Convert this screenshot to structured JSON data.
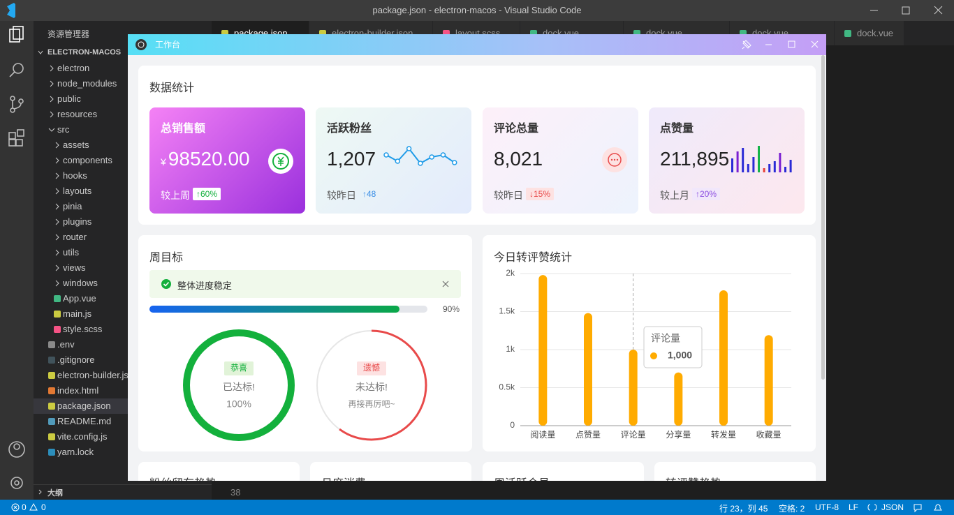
{
  "window": {
    "title": "package.json - electron-macos - Visual Studio Code"
  },
  "explorer": {
    "title": "资源管理器",
    "root": "ELECTRON-MACOS",
    "outline": "大纲",
    "items": [
      {
        "name": "electron",
        "depth": 0,
        "icon": "folder"
      },
      {
        "name": "node_modules",
        "depth": 0,
        "icon": "folder"
      },
      {
        "name": "public",
        "depth": 0,
        "icon": "folder"
      },
      {
        "name": "resources",
        "depth": 0,
        "icon": "folder"
      },
      {
        "name": "src",
        "depth": 0,
        "icon": "open-folder"
      },
      {
        "name": "assets",
        "depth": 1,
        "icon": "folder"
      },
      {
        "name": "components",
        "depth": 1,
        "icon": "folder"
      },
      {
        "name": "hooks",
        "depth": 1,
        "icon": "folder"
      },
      {
        "name": "layouts",
        "depth": 1,
        "icon": "folder"
      },
      {
        "name": "pinia",
        "depth": 1,
        "icon": "folder"
      },
      {
        "name": "plugins",
        "depth": 1,
        "icon": "folder"
      },
      {
        "name": "router",
        "depth": 1,
        "icon": "folder"
      },
      {
        "name": "utils",
        "depth": 1,
        "icon": "folder"
      },
      {
        "name": "views",
        "depth": 1,
        "icon": "folder"
      },
      {
        "name": "windows",
        "depth": 1,
        "icon": "folder"
      },
      {
        "name": "App.vue",
        "depth": 1,
        "icon": "#41b883"
      },
      {
        "name": "main.js",
        "depth": 1,
        "icon": "#cbcb41"
      },
      {
        "name": "style.scss",
        "depth": 1,
        "icon": "#f55385"
      },
      {
        "name": ".env",
        "depth": 0,
        "icon": "#8a8a8a"
      },
      {
        "name": ".gitignore",
        "depth": 0,
        "icon": "#41535b"
      },
      {
        "name": "electron-builder.js",
        "depth": 0,
        "icon": "#cbcb41"
      },
      {
        "name": "index.html",
        "depth": 0,
        "icon": "#e37933"
      },
      {
        "name": "package.json",
        "depth": 0,
        "icon": "#cbcb41",
        "selected": true
      },
      {
        "name": "README.md",
        "depth": 0,
        "icon": "#519aba"
      },
      {
        "name": "vite.config.js",
        "depth": 0,
        "icon": "#cbcb41"
      },
      {
        "name": "yarn.lock",
        "depth": 0,
        "icon": "#2c8ebb"
      }
    ]
  },
  "tabs": [
    "package.json",
    "electron-builder.json",
    "layout.scss",
    "dock.vue",
    "dock.vue",
    "dock.vue",
    "dock.vue"
  ],
  "editor": {
    "line": "38"
  },
  "statusbar": {
    "errors": "0",
    "warnings": "0",
    "position": "行 23，列 45",
    "spaces": "空格: 2",
    "encoding": "UTF-8",
    "eol": "LF",
    "language": "JSON"
  },
  "app": {
    "title": "工作台",
    "section_title": "数据统计",
    "cards": [
      {
        "title": "总销售额",
        "prefix": "¥",
        "value": "98520.00",
        "compare": "较上周",
        "trend": "↑60%"
      },
      {
        "title": "活跃粉丝",
        "value": "1,207",
        "compare": "较昨日",
        "trend": "↑48",
        "sparkline": {
          "color": "#1e9be8",
          "values": [
            18,
            9,
            27,
            6,
            15,
            18,
            7
          ]
        }
      },
      {
        "title": "评论总量",
        "value": "8,021",
        "compare": "较昨日",
        "trend": "↓15%"
      },
      {
        "title": "点赞量",
        "value": "211,895",
        "compare": "较上月",
        "trend": "↑20%",
        "bars": {
          "values": [
            20,
            30,
            35,
            12,
            22,
            38,
            6,
            12,
            16,
            28,
            8,
            18
          ],
          "colors": [
            "#2a2ad6",
            "#7b1fd1",
            "#2a2ad6",
            "#2a2ad6",
            "#2a2ad6",
            "#15b34a",
            "#e8413b",
            "#2a2ad6",
            "#2a2ad6",
            "#7b1fd1",
            "#2a2ad6",
            "#2a2ad6"
          ]
        }
      }
    ],
    "weekly": {
      "title": "周目标",
      "alert": "整体进度稳定",
      "progress": {
        "value": 90,
        "label": "90%"
      },
      "goals": [
        {
          "tag": "恭喜",
          "status": "已达标!",
          "detail": "100%",
          "value": 100,
          "color": "#13b03c"
        },
        {
          "tag": "遗憾",
          "status": "未达标!",
          "detail": "再接再厉吧~",
          "value": 60,
          "color": "#e84a4a"
        }
      ]
    },
    "chart": {
      "type": "bar",
      "title": "今日转评赞统计",
      "categories": [
        "阅读量",
        "点赞量",
        "评论量",
        "分享量",
        "转发量",
        "收藏量"
      ],
      "values": [
        1980,
        1480,
        1000,
        700,
        1780,
        1190
      ],
      "color": "#ffab00",
      "ylim": [
        0,
        2000
      ],
      "yticks": [
        0,
        {
          "value": 500,
          "label": "0.5k"
        },
        {
          "value": 1000,
          "label": "1k"
        },
        {
          "value": 1500,
          "label": "1.5k"
        },
        {
          "value": 2000,
          "label": "2k"
        }
      ],
      "grid": true,
      "tooltip": {
        "name": "评论量",
        "value": "1,000"
      }
    },
    "bottom_titles": [
      "粉丝留存趋势",
      "月度消费",
      "周活跃会员",
      "转评赞趋势"
    ]
  }
}
